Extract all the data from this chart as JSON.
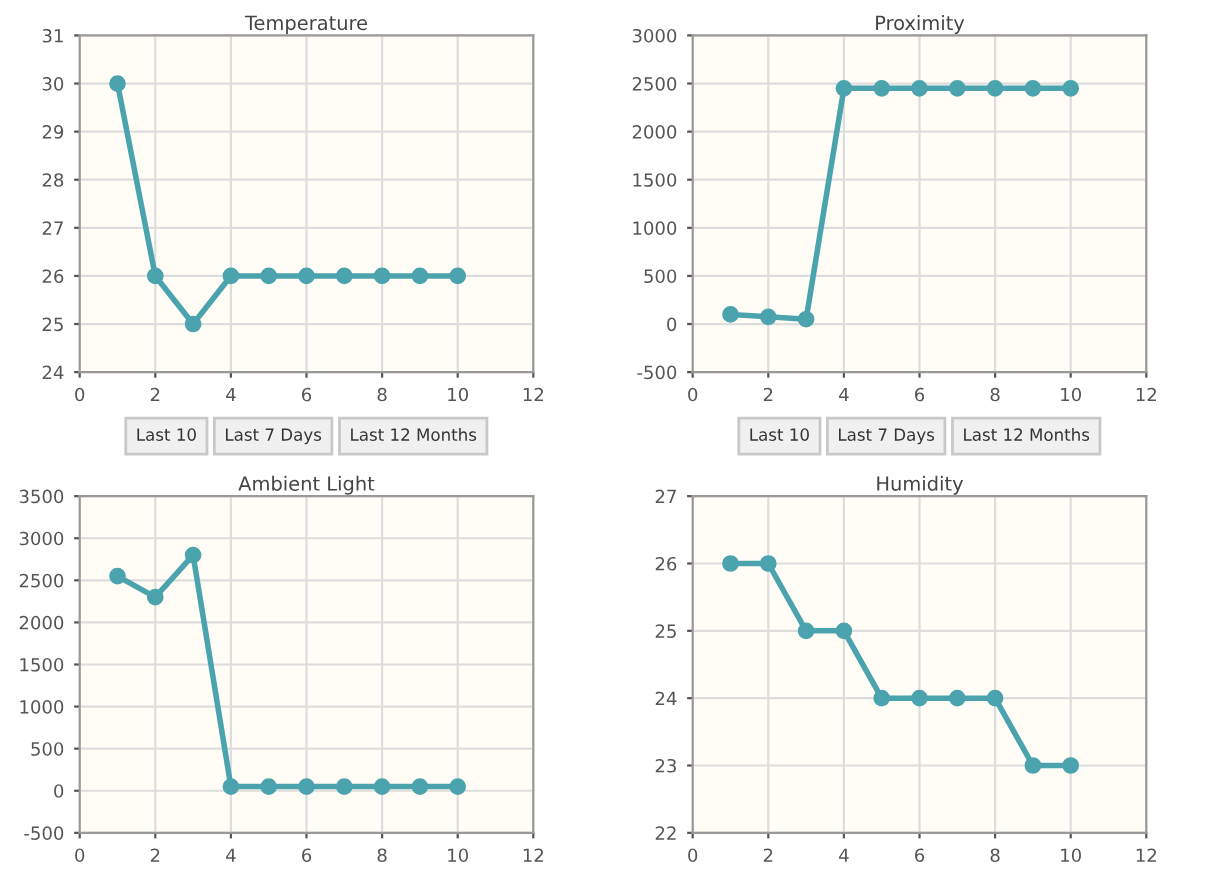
{
  "chart_data": [
    {
      "type": "line",
      "title": "Temperature",
      "x": [
        1,
        2,
        3,
        4,
        5,
        6,
        7,
        8,
        9,
        10
      ],
      "series": [
        {
          "color": "#4ba3ae",
          "values": [
            30,
            26,
            25,
            26,
            26,
            26,
            26,
            26,
            26,
            26
          ]
        }
      ],
      "xlim": [
        0,
        12
      ],
      "xticks": [
        0,
        2,
        4,
        6,
        8,
        10,
        12
      ],
      "ylim": [
        24,
        31
      ],
      "yticks": [
        24,
        25,
        26,
        27,
        28,
        29,
        30,
        31
      ],
      "grid": true,
      "marker": "circle",
      "annotations": [
        "Last 10",
        "Last 7 Days",
        "Last 12 Months"
      ]
    },
    {
      "type": "line",
      "title": "Proximity",
      "x": [
        1,
        2,
        3,
        4,
        5,
        6,
        7,
        8,
        9,
        10
      ],
      "series": [
        {
          "color": "#4ba3ae",
          "values": [
            100,
            75,
            50,
            2450,
            2450,
            2450,
            2450,
            2450,
            2450,
            2450
          ]
        }
      ],
      "xlim": [
        0,
        12
      ],
      "xticks": [
        0,
        2,
        4,
        6,
        8,
        10,
        12
      ],
      "ylim": [
        -500,
        3000
      ],
      "yticks": [
        -500,
        0,
        500,
        1000,
        1500,
        2000,
        2500,
        3000
      ],
      "grid": true,
      "marker": "circle",
      "annotations": [
        "Last 10",
        "Last 7 Days",
        "Last 12 Months"
      ]
    },
    {
      "type": "line",
      "title": "Ambient Light",
      "x": [
        1,
        2,
        3,
        4,
        5,
        6,
        7,
        8,
        9,
        10
      ],
      "series": [
        {
          "color": "#4ba3ae",
          "values": [
            2550,
            2300,
            2800,
            50,
            50,
            50,
            50,
            50,
            50,
            50
          ]
        }
      ],
      "xlim": [
        0,
        12
      ],
      "xticks": [
        0,
        2,
        4,
        6,
        8,
        10,
        12
      ],
      "ylim": [
        -500,
        3500
      ],
      "yticks": [
        -500,
        0,
        500,
        1000,
        1500,
        2000,
        2500,
        3000,
        3500
      ],
      "grid": true,
      "marker": "circle"
    },
    {
      "type": "line",
      "title": "Humidity",
      "x": [
        1,
        2,
        3,
        4,
        5,
        6,
        7,
        8,
        9,
        10
      ],
      "series": [
        {
          "color": "#4ba3ae",
          "values": [
            26,
            26,
            25,
            25,
            24,
            24,
            24,
            24,
            23,
            23
          ]
        }
      ],
      "xlim": [
        0,
        12
      ],
      "xticks": [
        0,
        2,
        4,
        6,
        8,
        10,
        12
      ],
      "ylim": [
        22,
        27
      ],
      "yticks": [
        22,
        23,
        24,
        25,
        26,
        27
      ],
      "grid": true,
      "marker": "circle"
    }
  ]
}
